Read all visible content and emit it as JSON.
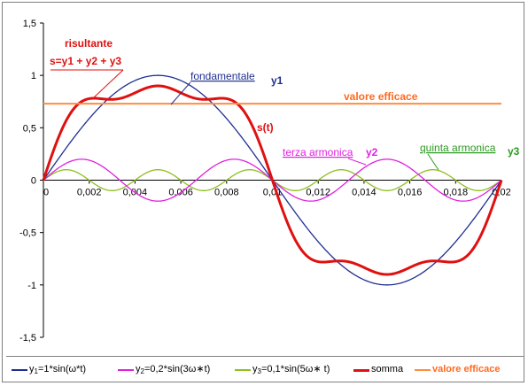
{
  "chart_data": {
    "type": "line",
    "xlim": [
      0,
      0.02
    ],
    "ylim": [
      -1.5,
      1.5
    ],
    "xticks": [
      "0",
      "0,002",
      "0,004",
      "0,006",
      "0,008",
      "0,01",
      "0,012",
      "0,014",
      "0,016",
      "0,018",
      "0,02"
    ],
    "yticks": [
      "1,5",
      "1",
      "0,5",
      "0",
      "-0,5",
      "-1",
      "-1,5"
    ],
    "series": [
      {
        "name": "y1=1*sin(ω*t)",
        "amplitude": 1,
        "harmonic": 1,
        "color": "#1f2f8f"
      },
      {
        "name": "y2=0,2*sin(3ω*t)",
        "amplitude": 0.2,
        "harmonic": 3,
        "color": "#e020e0"
      },
      {
        "name": "y3=0,1*sin(5ω*t)",
        "amplitude": 0.1,
        "harmonic": 5,
        "color": "#8fbf20"
      },
      {
        "name": "somma",
        "color": "#e01010"
      },
      {
        "name": "valore efficace",
        "value": 0.73,
        "color": "#ff8c40"
      }
    ],
    "annotations": {
      "risultante": "risultante",
      "formula": "s=y1 + y2 + y3",
      "fondamentale": "fondamentale",
      "y1": "y1",
      "valore_efficace": "valore efficace",
      "st": "s(t)",
      "terza": "terza armonica",
      "y2": "y2",
      "quinta": "quinta armonica",
      "y3": "y3"
    }
  },
  "legend": [
    {
      "pre": "y",
      "sub": "1",
      "post": "=1*sin(ω*t)",
      "color": "#1f2f8f"
    },
    {
      "pre": "y",
      "sub": "2",
      "post": "=0,2*sin(3ω∗t)",
      "color": "#e020e0"
    },
    {
      "pre": "y",
      "sub": "3",
      "post": "=0,1*sin(5ω∗ t)",
      "color": "#8fbf20"
    },
    {
      "pre": "somma",
      "sub": "",
      "post": "",
      "color": "#e01010"
    },
    {
      "pre": "valore efficace",
      "sub": "",
      "post": "",
      "color": "#ff8c40"
    }
  ]
}
